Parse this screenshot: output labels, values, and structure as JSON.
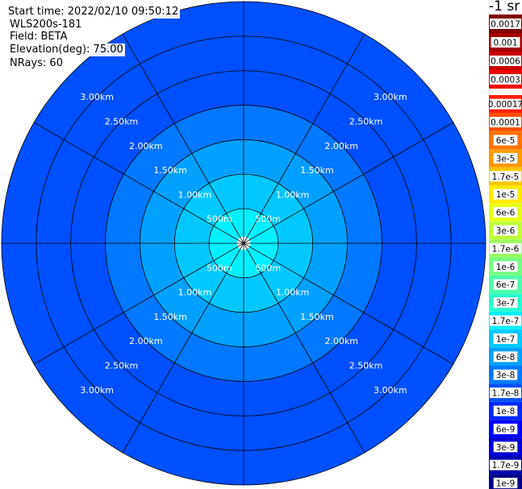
{
  "header": {
    "start_time": "Start time: 2022/02/10 09:50:12",
    "instrument": "WLS200s-181",
    "field": "Field: BETA",
    "elevation": "Elevation(deg): 75.00",
    "nrays": "NRays: 60"
  },
  "colorbar": {
    "unit_label": "-1 sr",
    "upper_ticks": [
      {
        "label": "0.0017",
        "color": "#7f0000"
      },
      {
        "label": "0.001",
        "color": "#a50000"
      },
      {
        "label": "0.0006",
        "color": "#cc0000"
      },
      {
        "label": "0.0003",
        "color": "#f00000"
      }
    ],
    "lower_ticks": [
      {
        "label": "0.00017",
        "color": "#ff2000"
      },
      {
        "label": "0.0001",
        "color": "#ff4d00"
      },
      {
        "label": "6e-5",
        "color": "#ff7400"
      },
      {
        "label": "3e-5",
        "color": "#ff9a00"
      },
      {
        "label": "1.7e-5",
        "color": "#ffc400"
      },
      {
        "label": "1e-5",
        "color": "#ffea00"
      },
      {
        "label": "6e-6",
        "color": "#e6ff12"
      },
      {
        "label": "3e-6",
        "color": "#c0ff37"
      },
      {
        "label": "1.7e-6",
        "color": "#9aff5d"
      },
      {
        "label": "1e-6",
        "color": "#74ff83"
      },
      {
        "label": "6e-7",
        "color": "#4dffaa"
      },
      {
        "label": "3e-7",
        "color": "#27ffd0"
      },
      {
        "label": "1.7e-7",
        "color": "#00f0ff"
      },
      {
        "label": "1e-7",
        "color": "#00c8ff"
      },
      {
        "label": "6e-8",
        "color": "#00a0ff"
      },
      {
        "label": "3e-8",
        "color": "#0078ff"
      },
      {
        "label": "1.7e-8",
        "color": "#0050ff"
      },
      {
        "label": "1e-8",
        "color": "#0028ff"
      },
      {
        "label": "6e-9",
        "color": "#0000ff"
      },
      {
        "label": "3e-9",
        "color": "#0000d8"
      },
      {
        "label": "1.7e-9",
        "color": "#0000b0"
      },
      {
        "label": "1e-9",
        "color": "#000088"
      }
    ]
  },
  "chart_data": {
    "type": "heatmap",
    "projection": "polar PPI",
    "rays": 60,
    "max_range_km": 3.5,
    "range_rings": [
      {
        "label": "500m",
        "km": 0.5
      },
      {
        "label": "1.00km",
        "km": 1.0
      },
      {
        "label": "1.50km",
        "km": 1.5
      },
      {
        "label": "2.00km",
        "km": 2.0
      },
      {
        "label": "2.50km",
        "km": 2.5
      },
      {
        "label": "3.00km",
        "km": 3.0
      }
    ],
    "range_bins": [
      {
        "from_km": 0.1,
        "to_km": 0.5,
        "level": "1.7e-7"
      },
      {
        "from_km": 0.5,
        "to_km": 1.0,
        "level": "1e-7"
      },
      {
        "from_km": 1.0,
        "to_km": 1.5,
        "level": "6e-8"
      },
      {
        "from_km": 1.5,
        "to_km": 2.0,
        "level": "3e-8"
      },
      {
        "from_km": 2.0,
        "to_km": 2.5,
        "level": "1.7e-8"
      },
      {
        "from_km": 2.5,
        "to_km": 3.5,
        "level": "1.7e-8"
      }
    ],
    "colormap": "jet"
  }
}
